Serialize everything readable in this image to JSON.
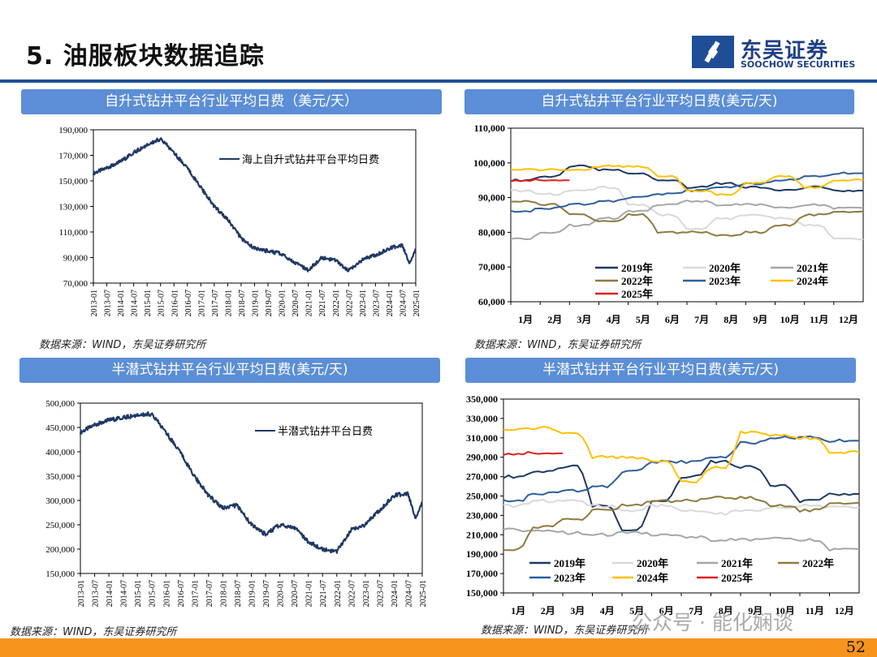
{
  "page": {
    "title": "5. 油服板块数据追踪",
    "logo_cn": "东吴证券",
    "logo_en": "SOOCHOW SECURITIES",
    "page_number": "52",
    "watermark": "公众号 · 能化娴谈",
    "colors": {
      "brand": "#1f4e96",
      "title_bar": "#5b8ed6",
      "bottom_bar": "#f7941d"
    }
  },
  "panels": [
    {
      "title": "自升式钻井平台行业平均日费（美元/天）",
      "source": "数据来源：WIND，东吴证券研究所"
    },
    {
      "title": "自升式钻井平台行业平均日费(美元/天)",
      "source": "数据来源：WIND，东吴证券研究所"
    },
    {
      "title": "半潜式钻井平台行业平均日费(美元/天)",
      "source": ""
    },
    {
      "title": "半潜式钻井平台行业平均日费(美元/天)",
      "source": "数据来源：WIND，东吴证券研究所"
    }
  ],
  "bottom_source": "数据来源：WIND，东吴证券研究所",
  "chart_data": [
    {
      "type": "line",
      "title": "",
      "legend": "top-right",
      "ylim": [
        70000,
        190000
      ],
      "yticks": [
        "70,000",
        "90,000",
        "110,000",
        "130,000",
        "150,000",
        "170,000",
        "190,000"
      ],
      "xticks": [
        "2013-01",
        "2013-07",
        "2014-01",
        "2014-07",
        "2015-01",
        "2015-07",
        "2016-01",
        "2016-07",
        "2017-01",
        "2017-07",
        "2018-01",
        "2018-07",
        "2019-01",
        "2019-07",
        "2020-01",
        "2020-07",
        "2021-01",
        "2021-07",
        "2022-01",
        "2022-07",
        "2023-01",
        "2023-07",
        "2024-01",
        "2024-07",
        "2025-01"
      ],
      "series": [
        {
          "name": "海上自升式钻井平台平均日费",
          "color": "#1f3864",
          "points": [
            [
              "2013-01",
              156000
            ],
            [
              "2013-07",
              160000
            ],
            [
              "2014-01",
              165000
            ],
            [
              "2014-07",
              172000
            ],
            [
              "2015-01",
              178000
            ],
            [
              "2015-07",
              183000
            ],
            [
              "2016-01",
              172000
            ],
            [
              "2016-07",
              160000
            ],
            [
              "2017-01",
              145000
            ],
            [
              "2017-07",
              130000
            ],
            [
              "2018-01",
              120000
            ],
            [
              "2018-07",
              105000
            ],
            [
              "2019-01",
              97000
            ],
            [
              "2019-07",
              95000
            ],
            [
              "2020-01",
              93000
            ],
            [
              "2020-07",
              86000
            ],
            [
              "2021-01",
              80000
            ],
            [
              "2021-07",
              90000
            ],
            [
              "2022-01",
              88000
            ],
            [
              "2022-07",
              80000
            ],
            [
              "2023-01",
              88000
            ],
            [
              "2023-07",
              92000
            ],
            [
              "2024-01",
              97000
            ],
            [
              "2024-07",
              100000
            ],
            [
              "2024-10",
              86000
            ],
            [
              "2025-01",
              96000
            ]
          ]
        }
      ]
    },
    {
      "type": "line",
      "title": "",
      "legend": "bottom",
      "ylim": [
        60000,
        110000
      ],
      "yticks": [
        "60,000",
        "70,000",
        "80,000",
        "90,000",
        "100,000",
        "110,000"
      ],
      "xticks": [
        "1月",
        "2月",
        "3月",
        "4月",
        "5月",
        "6月",
        "7月",
        "8月",
        "9月",
        "10月",
        "11月",
        "12月"
      ],
      "series": [
        {
          "name": "2019年",
          "color": "#1f3864",
          "values": [
            95000,
            96000,
            99000,
            98000,
            97000,
            95000,
            93000,
            94000,
            93000,
            92000,
            93000,
            92000
          ]
        },
        {
          "name": "2020年",
          "color": "#d9d9d9",
          "values": [
            92000,
            91000,
            92000,
            93000,
            88000,
            85000,
            81000,
            84000,
            85000,
            84000,
            82000,
            78000
          ]
        },
        {
          "name": "2021年",
          "color": "#a6a6a6",
          "values": [
            78000,
            80000,
            82000,
            84000,
            86000,
            88000,
            89000,
            88000,
            88000,
            87000,
            88000,
            87000
          ]
        },
        {
          "name": "2022年",
          "color": "#8c7a3e",
          "values": [
            89000,
            88000,
            85000,
            83000,
            85000,
            80000,
            80000,
            79000,
            80000,
            82000,
            85000,
            86000
          ]
        },
        {
          "name": "2023年",
          "color": "#2e5d9e",
          "values": [
            86000,
            87000,
            88000,
            89000,
            90000,
            91000,
            92000,
            93000,
            94000,
            95000,
            96000,
            97000
          ]
        },
        {
          "name": "2024年",
          "color": "#ffc000",
          "values": [
            98000,
            98000,
            98000,
            99000,
            99000,
            96000,
            92000,
            91000,
            94000,
            96000,
            93000,
            95000
          ]
        },
        {
          "name": "2025年",
          "color": "#e02020",
          "values": [
            95000,
            95000
          ]
        }
      ]
    },
    {
      "type": "line",
      "title": "",
      "legend": "top-right",
      "ylim": [
        150000,
        500000
      ],
      "yticks": [
        "150,000",
        "200,000",
        "250,000",
        "300,000",
        "350,000",
        "400,000",
        "450,000",
        "500,000"
      ],
      "xticks": [
        "2013-01",
        "2013-07",
        "2014-01",
        "2014-07",
        "2015-01",
        "2015-07",
        "2016-01",
        "2016-07",
        "2017-01",
        "2017-07",
        "2018-01",
        "2018-07",
        "2019-01",
        "2019-07",
        "2020-01",
        "2020-07",
        "2021-01",
        "2021-07",
        "2022-01",
        "2022-07",
        "2023-01",
        "2023-07",
        "2024-01",
        "2024-07",
        "2025-01"
      ],
      "series": [
        {
          "name": "半潜式钻井平台日费",
          "color": "#1f3864",
          "points": [
            [
              "2013-01",
              440000
            ],
            [
              "2013-07",
              455000
            ],
            [
              "2014-01",
              465000
            ],
            [
              "2014-07",
              470000
            ],
            [
              "2015-01",
              475000
            ],
            [
              "2015-07",
              478000
            ],
            [
              "2016-01",
              440000
            ],
            [
              "2016-07",
              400000
            ],
            [
              "2017-01",
              350000
            ],
            [
              "2017-07",
              310000
            ],
            [
              "2018-01",
              285000
            ],
            [
              "2018-07",
              290000
            ],
            [
              "2019-01",
              250000
            ],
            [
              "2019-07",
              230000
            ],
            [
              "2020-01",
              250000
            ],
            [
              "2020-07",
              245000
            ],
            [
              "2021-01",
              215000
            ],
            [
              "2021-07",
              200000
            ],
            [
              "2022-01",
              195000
            ],
            [
              "2022-07",
              240000
            ],
            [
              "2023-01",
              250000
            ],
            [
              "2023-07",
              280000
            ],
            [
              "2024-01",
              310000
            ],
            [
              "2024-07",
              315000
            ],
            [
              "2024-10",
              265000
            ],
            [
              "2025-01",
              295000
            ]
          ]
        }
      ]
    },
    {
      "type": "line",
      "title": "",
      "legend": "bottom",
      "ylim": [
        150000,
        350000
      ],
      "yticks": [
        "150,000",
        "170,000",
        "190,000",
        "210,000",
        "230,000",
        "250,000",
        "270,000",
        "290,000",
        "310,000",
        "330,000",
        "350,000"
      ],
      "xticks": [
        "1月",
        "2月",
        "3月",
        "4月",
        "5月",
        "6月",
        "7月",
        "8月",
        "9月",
        "10月",
        "11月",
        "12月"
      ],
      "series": [
        {
          "name": "2019年",
          "color": "#1f3864",
          "values": [
            270000,
            275000,
            280000,
            240000,
            215000,
            245000,
            270000,
            285000,
            280000,
            260000,
            245000,
            252000
          ]
        },
        {
          "name": "2020年",
          "color": "#d9d9d9",
          "values": [
            240000,
            245000,
            245000,
            240000,
            235000,
            240000,
            235000,
            232000,
            235000,
            238000,
            240000,
            238000
          ]
        },
        {
          "name": "2021年",
          "color": "#a6a6a6",
          "values": [
            215000,
            215000,
            212000,
            210000,
            212000,
            210000,
            208000,
            205000,
            205000,
            206000,
            205000,
            195000
          ]
        },
        {
          "name": "2022年",
          "color": "#8c7a3e",
          "values": [
            195000,
            218000,
            225000,
            235000,
            240000,
            245000,
            245000,
            248000,
            248000,
            240000,
            235000,
            243000
          ]
        },
        {
          "name": "2023年",
          "color": "#2e5d9e",
          "values": [
            245000,
            253000,
            255000,
            260000,
            275000,
            285000,
            285000,
            290000,
            305000,
            310000,
            310000,
            307000
          ]
        },
        {
          "name": "2024年",
          "color": "#ffc000",
          "values": [
            318000,
            320000,
            315000,
            290000,
            290000,
            285000,
            265000,
            280000,
            315000,
            312000,
            310000,
            295000
          ]
        },
        {
          "name": "2025年",
          "color": "#e02020",
          "values": [
            294000,
            294000
          ]
        }
      ]
    }
  ]
}
